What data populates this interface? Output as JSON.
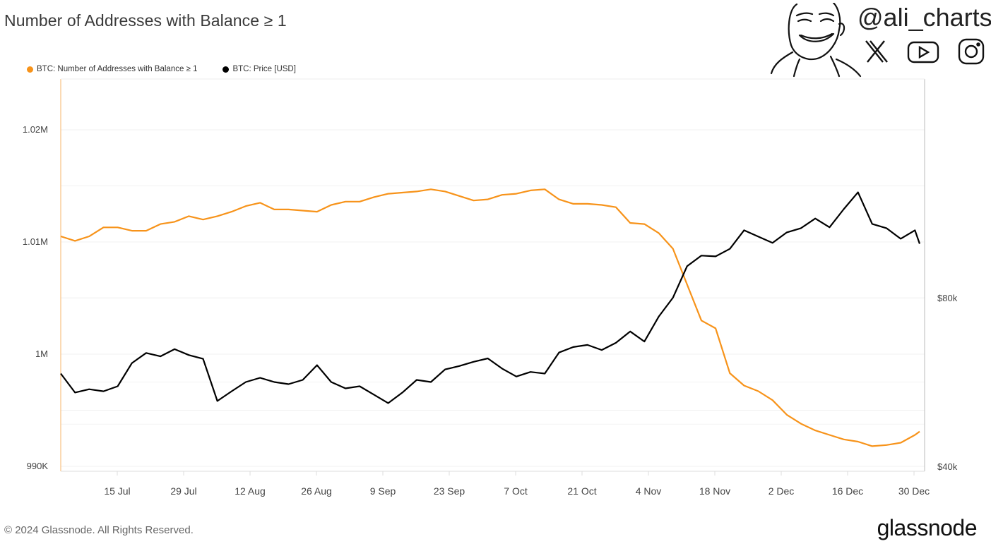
{
  "header": {
    "title": "Number of Addresses with Balance ≥ 1"
  },
  "branding": {
    "handle": "@ali_charts",
    "social_icons": [
      "x-icon",
      "youtube-icon",
      "instagram-icon"
    ]
  },
  "legend": [
    {
      "label": "BTC: Number of Addresses with Balance ≥ 1",
      "color": "#f7931a"
    },
    {
      "label": "BTC: Price [USD]",
      "color": "#000000"
    }
  ],
  "footer": {
    "copyright": "© 2024 Glassnode. All Rights Reserved.",
    "logo_text": "glassnode"
  },
  "chart_data": {
    "type": "line",
    "title": "Number of Addresses with Balance ≥ 1",
    "xlabel": "",
    "ylabel": "",
    "y_left": {
      "ticks": [
        "990K",
        "1M",
        "1.01M",
        "1.02M"
      ],
      "range": [
        990000,
        1022000
      ]
    },
    "y_right": {
      "ticks": [
        "$40k",
        "$80k"
      ],
      "range": [
        40000,
        115000
      ],
      "scale": "linear"
    },
    "x_ticks": [
      "15 Jul",
      "29 Jul",
      "12 Aug",
      "26 Aug",
      "9 Sep",
      "23 Sep",
      "7 Oct",
      "21 Oct",
      "4 Nov",
      "18 Nov",
      "2 Dec",
      "16 Dec",
      "30 Dec"
    ],
    "grid": true,
    "legend_position": "top-left",
    "x": [
      "2024-07-03",
      "2024-07-06",
      "2024-07-09",
      "2024-07-12",
      "2024-07-15",
      "2024-07-18",
      "2024-07-21",
      "2024-07-24",
      "2024-07-27",
      "2024-07-30",
      "2024-08-02",
      "2024-08-05",
      "2024-08-08",
      "2024-08-11",
      "2024-08-14",
      "2024-08-17",
      "2024-08-20",
      "2024-08-23",
      "2024-08-26",
      "2024-08-29",
      "2024-09-01",
      "2024-09-04",
      "2024-09-07",
      "2024-09-10",
      "2024-09-13",
      "2024-09-16",
      "2024-09-19",
      "2024-09-22",
      "2024-09-25",
      "2024-09-28",
      "2024-10-01",
      "2024-10-04",
      "2024-10-07",
      "2024-10-10",
      "2024-10-13",
      "2024-10-16",
      "2024-10-19",
      "2024-10-22",
      "2024-10-25",
      "2024-10-28",
      "2024-10-31",
      "2024-11-03",
      "2024-11-06",
      "2024-11-09",
      "2024-11-12",
      "2024-11-15",
      "2024-11-18",
      "2024-11-21",
      "2024-11-24",
      "2024-11-27",
      "2024-11-30",
      "2024-12-03",
      "2024-12-06",
      "2024-12-09",
      "2024-12-12",
      "2024-12-15",
      "2024-12-18",
      "2024-12-21",
      "2024-12-24",
      "2024-12-27",
      "2024-12-30",
      "2024-12-31"
    ],
    "series": [
      {
        "name": "BTC: Number of Addresses with Balance ≥ 1",
        "axis": "left",
        "color": "#f7931a",
        "values": [
          1010500,
          1010100,
          1010500,
          1011300,
          1011300,
          1011000,
          1011000,
          1011600,
          1011800,
          1012300,
          1012000,
          1012300,
          1012700,
          1013200,
          1013500,
          1012900,
          1012900,
          1012800,
          1012700,
          1013300,
          1013600,
          1013600,
          1014000,
          1014300,
          1014400,
          1014500,
          1014700,
          1014500,
          1014100,
          1013700,
          1013800,
          1014200,
          1014300,
          1014600,
          1014700,
          1013800,
          1013400,
          1013400,
          1013300,
          1013100,
          1011700,
          1011600,
          1010800,
          1009400,
          1006200,
          1003000,
          1002300,
          998300,
          997200,
          996700,
          995900,
          994600,
          993800,
          993200,
          992800,
          992400,
          992200,
          991800,
          991900,
          992100,
          992800,
          993100
        ]
      },
      {
        "name": "BTC: Price [USD]",
        "axis": "right",
        "color": "#000000",
        "values": [
          62000,
          57500,
          58300,
          57800,
          59000,
          64500,
          66900,
          66100,
          67800,
          66400,
          65500,
          55500,
          57800,
          60000,
          61000,
          60000,
          59500,
          60500,
          64000,
          60000,
          58500,
          59000,
          57000,
          55000,
          57500,
          60500,
          60000,
          63000,
          63800,
          64800,
          65600,
          63200,
          61300,
          62400,
          62000,
          67000,
          68300,
          68800,
          67600,
          69300,
          72000,
          69600,
          75500,
          80000,
          87500,
          90000,
          89800,
          91600,
          96000,
          94500,
          93000,
          95500,
          96500,
          98800,
          96700,
          101000,
          105000,
          97500,
          96500,
          94000,
          96000,
          92800
        ]
      }
    ]
  }
}
